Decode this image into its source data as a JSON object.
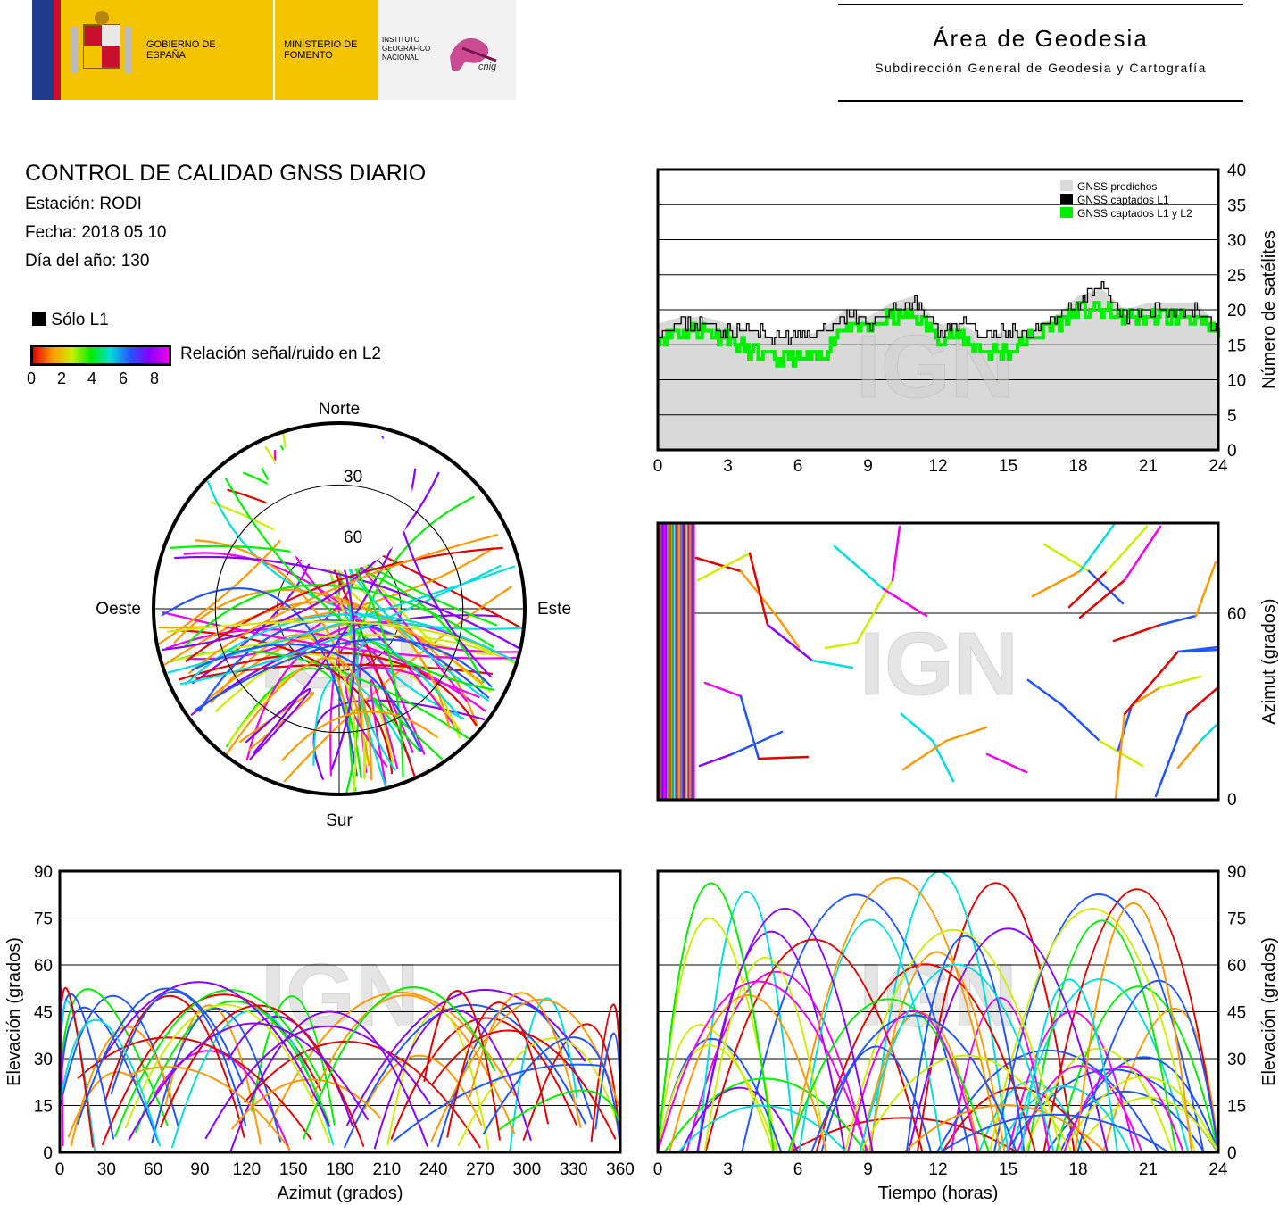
{
  "header": {
    "logo_gobierno": "GOBIERNO DE ESPAÑA",
    "logo_ministerio": "MINISTERIO DE FOMENTO",
    "logo_instituto": "INSTITUTO GEOGRÁFICO NACIONAL",
    "logo_cnig": "cnig",
    "area_title": "Área de Geodesia",
    "area_subtitle": "Subdirección General de Geodesia y Cartografía"
  },
  "report": {
    "title": "CONTROL DE CALIDAD GNSS DIARIO",
    "station": "Estación: RODI",
    "date": "Fecha: 2018 05 10",
    "day_of_year": "Día del año: 130",
    "legend_l1": "Sólo L1",
    "legend_snr": "Relación señal/ruido en L2",
    "snr_ticks": [
      "0",
      "2",
      "4",
      "6",
      "8"
    ],
    "watermark": "IGN"
  },
  "colors": {
    "predicted": "#d9d9d9",
    "l1": "#000000",
    "l1l2": "#00ee00",
    "snr_scale": [
      "#e00000",
      "#ff9900",
      "#ccee00",
      "#00ee00",
      "#00dddd",
      "#2255ff",
      "#8800ff",
      "#ee00ee"
    ]
  },
  "chart_data": [
    {
      "type": "area",
      "id": "satellite-count",
      "xlabel": "",
      "ylabel": "Número de satélites",
      "xlim": [
        0,
        24
      ],
      "ylim": [
        0,
        40
      ],
      "xticks": [
        "0",
        "3",
        "6",
        "9",
        "12",
        "15",
        "18",
        "21",
        "24"
      ],
      "yticks": [
        "0",
        "5",
        "10",
        "15",
        "20",
        "25",
        "30",
        "35",
        "40"
      ],
      "grid": true,
      "legend_position": "top-right",
      "legend": [
        "GNSS predichos",
        "GNSS captados L1",
        "GNSS captados L1 y L2"
      ],
      "x": [
        0,
        1,
        2,
        3,
        4,
        5,
        6,
        7,
        8,
        9,
        10,
        11,
        12,
        13,
        14,
        15,
        16,
        17,
        18,
        19,
        20,
        21,
        22,
        23,
        24
      ],
      "series": [
        {
          "name": "GNSS predichos",
          "values": [
            18,
            19,
            19,
            18,
            17,
            16,
            16,
            17,
            20,
            19,
            21,
            22,
            18,
            18,
            16,
            17,
            17,
            19,
            22,
            23,
            20,
            21,
            21,
            21,
            18
          ]
        },
        {
          "name": "GNSS captados L1",
          "values": [
            17,
            18,
            18,
            17,
            17,
            16,
            16,
            17,
            19,
            18,
            20,
            21,
            17,
            18,
            16,
            17,
            16,
            19,
            21,
            23,
            19,
            20,
            20,
            20,
            17
          ]
        },
        {
          "name": "GNSS captados L1 y L2",
          "values": [
            16,
            17,
            17,
            16,
            14,
            13,
            13,
            13,
            18,
            17,
            19,
            19,
            16,
            16,
            14,
            14,
            16,
            18,
            20,
            20,
            19,
            19,
            19,
            19,
            16
          ]
        }
      ]
    },
    {
      "type": "line",
      "id": "azimuth-time",
      "ylabel": "Azimut (grados)",
      "yticks": [
        "0",
        "60"
      ],
      "grid": true
    },
    {
      "type": "scatter",
      "id": "skyplot",
      "labels": {
        "north": "Norte",
        "south": "Sur",
        "west": "Oeste",
        "east": "Este"
      },
      "rings": [
        "30",
        "60"
      ]
    },
    {
      "type": "line",
      "id": "elevation-azimuth",
      "xlabel": "Azimut (grados)",
      "ylabel": "Elevación (grados)",
      "xlim": [
        0,
        360
      ],
      "ylim": [
        0,
        90
      ],
      "xticks": [
        "0",
        "30",
        "60",
        "90",
        "120",
        "150",
        "180",
        "210",
        "240",
        "270",
        "300",
        "330",
        "360"
      ],
      "yticks": [
        "0",
        "15",
        "30",
        "45",
        "60",
        "75",
        "90"
      ],
      "grid": true
    },
    {
      "type": "line",
      "id": "elevation-time",
      "xlabel": "Tiempo (horas)",
      "ylabel": "Elevación (grados)",
      "xlim": [
        0,
        24
      ],
      "ylim": [
        0,
        90
      ],
      "xticks": [
        "0",
        "3",
        "6",
        "9",
        "12",
        "15",
        "18",
        "21",
        "24"
      ],
      "yticks": [
        "0",
        "15",
        "30",
        "45",
        "60",
        "75",
        "90"
      ],
      "grid": true
    }
  ]
}
